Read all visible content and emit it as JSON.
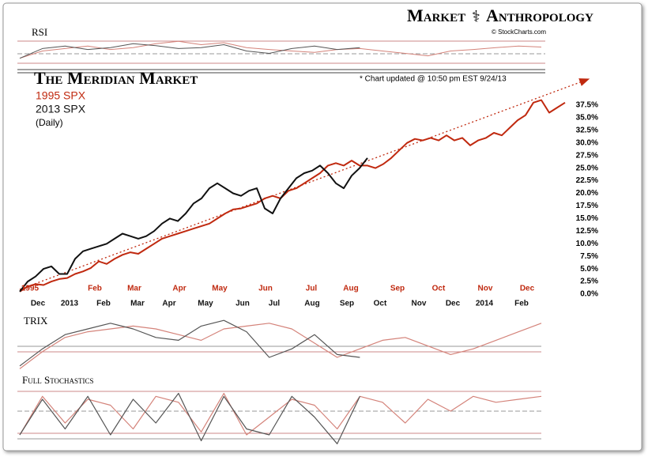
{
  "brand": {
    "left": "Market",
    "right": "Anthropology",
    "credit": "© StockCharts.com"
  },
  "chart_data": [
    {
      "type": "line",
      "title": "The Meridian Market",
      "subtitle": "(Daily)",
      "annotation": "* Chart updated @ 10:50 pm EST 9/24/13",
      "xlim": [
        0,
        69
      ],
      "ylim": [
        0,
        40
      ],
      "xticks": [
        {
          "value": 1.3,
          "label": "1995"
        },
        {
          "value": 9.5,
          "label": "Feb"
        },
        {
          "value": 14.5,
          "label": "Mar"
        },
        {
          "value": 20.2,
          "label": "Apr"
        },
        {
          "value": 25.3,
          "label": "May"
        },
        {
          "value": 31.1,
          "label": "Jun"
        },
        {
          "value": 36.9,
          "label": "Jul"
        },
        {
          "value": 41.9,
          "label": "Aug"
        },
        {
          "value": 47.8,
          "label": "Sep"
        },
        {
          "value": 53,
          "label": "Oct"
        },
        {
          "value": 58.9,
          "label": "Nov"
        },
        {
          "value": 64.2,
          "label": "Dec"
        }
      ],
      "x2ticks": [
        {
          "value": 2.3,
          "label": "Dec"
        },
        {
          "value": 6.3,
          "label": "2013"
        },
        {
          "value": 10.6,
          "label": "Feb"
        },
        {
          "value": 14.9,
          "label": "Mar"
        },
        {
          "value": 18.9,
          "label": "Apr"
        },
        {
          "value": 23.5,
          "label": "May"
        },
        {
          "value": 28.2,
          "label": "Jun"
        },
        {
          "value": 32.2,
          "label": "Jul"
        },
        {
          "value": 37,
          "label": "Aug"
        },
        {
          "value": 41.4,
          "label": "Sep"
        },
        {
          "value": 45.6,
          "label": "Oct"
        },
        {
          "value": 50.5,
          "label": "Nov"
        },
        {
          "value": 54.8,
          "label": "Dec"
        },
        {
          "value": 58.8,
          "label": "2014"
        },
        {
          "value": 63.5,
          "label": "Feb"
        }
      ],
      "yticks": [
        {
          "value": 0,
          "label": "0.0%"
        },
        {
          "value": 2.5,
          "label": "2.5%"
        },
        {
          "value": 5,
          "label": "5.0%"
        },
        {
          "value": 7.5,
          "label": "7.5%"
        },
        {
          "value": 10,
          "label": "10.0%"
        },
        {
          "value": 12.5,
          "label": "12.5%"
        },
        {
          "value": 15,
          "label": "15.0%"
        },
        {
          "value": 17.5,
          "label": "17.5%"
        },
        {
          "value": 20,
          "label": "20.0%"
        },
        {
          "value": 22.5,
          "label": "22.5%"
        },
        {
          "value": 25,
          "label": "25.0%"
        },
        {
          "value": 27.5,
          "label": "27.5%"
        },
        {
          "value": 30,
          "label": "30.0%"
        },
        {
          "value": 32.5,
          "label": "32.5%"
        },
        {
          "value": 35,
          "label": "35.0%"
        },
        {
          "value": 37.5,
          "label": "37.5%"
        }
      ],
      "series": [
        {
          "name": "1995 SPX",
          "color": "#c0290f",
          "values": [
            0.5,
            1.5,
            2,
            1.8,
            2.5,
            3,
            3.2,
            4,
            4.5,
            5.2,
            6.5,
            6,
            7,
            7.8,
            8.3,
            8,
            9,
            10,
            11,
            11.5,
            12,
            12.5,
            13,
            13.5,
            14,
            15,
            16,
            16.8,
            17,
            17.5,
            18,
            19,
            19.5,
            19,
            20.5,
            21,
            22,
            23,
            24,
            25.5,
            26,
            25.5,
            26.5,
            25.5,
            25.5,
            25,
            25.8,
            27,
            28.5,
            30,
            30.8,
            30.5,
            31,
            30.5,
            31.5,
            30.5,
            31,
            29.5,
            30.5,
            31,
            32,
            31.5,
            33,
            34.5,
            35.5,
            38,
            38.5,
            36,
            37,
            38
          ]
        },
        {
          "name": "2013 SPX",
          "color": "#111111",
          "values": [
            0.5,
            2.5,
            3.5,
            5,
            5.5,
            4,
            4,
            7,
            8.5,
            9,
            9.5,
            10,
            11,
            12,
            11.5,
            11,
            11.5,
            12.5,
            14,
            15,
            14.5,
            16,
            18,
            19,
            21,
            22,
            21,
            20,
            19.5,
            20.5,
            21,
            17,
            16,
            19,
            21,
            23,
            24,
            24.5,
            25.5,
            24,
            22,
            21,
            23.5,
            25,
            27,
            null,
            null,
            null,
            null,
            null,
            null,
            null,
            null,
            null,
            null,
            null,
            null,
            null,
            null,
            null,
            null,
            null,
            null,
            null,
            null,
            null,
            null,
            null,
            null,
            null
          ]
        }
      ]
    },
    {
      "type": "line",
      "title": "RSI",
      "xlim": [
        0,
        69
      ],
      "ylim": [
        20,
        85
      ],
      "x": [
        0,
        3,
        6,
        9,
        12,
        15,
        18,
        21,
        24,
        27,
        30,
        33,
        36,
        39,
        42,
        45,
        48,
        51,
        54,
        57,
        60,
        63,
        66,
        69
      ],
      "series": [
        {
          "color": "#d4837a",
          "values": [
            40,
            55,
            60,
            65,
            58,
            62,
            70,
            75,
            68,
            72,
            62,
            58,
            55,
            52,
            58,
            60,
            55,
            50,
            45,
            55,
            58,
            62,
            65,
            63
          ]
        },
        {
          "color": "#555555",
          "values": [
            40,
            60,
            65,
            58,
            62,
            70,
            66,
            60,
            62,
            68,
            55,
            50,
            60,
            65,
            58,
            62,
            null,
            null,
            null,
            null,
            null,
            null,
            null,
            null
          ]
        }
      ]
    },
    {
      "type": "line",
      "title": "TRIX",
      "xlim": [
        0,
        69
      ],
      "ylim": [
        -1,
        1
      ],
      "x": [
        0,
        3,
        6,
        9,
        12,
        15,
        18,
        21,
        24,
        27,
        30,
        33,
        36,
        39,
        42,
        45,
        48,
        51,
        54,
        57,
        60,
        63,
        66,
        69
      ],
      "series": [
        {
          "color": "#d4837a",
          "values": [
            -0.9,
            -0.3,
            0.2,
            0.4,
            0.5,
            0.6,
            0.5,
            0.3,
            0.1,
            0.5,
            0.6,
            0.7,
            0.5,
            0.0,
            -0.5,
            -0.2,
            0.1,
            0.2,
            -0.1,
            -0.4,
            -0.2,
            0.1,
            0.4,
            0.7
          ]
        },
        {
          "color": "#555555",
          "values": [
            -0.8,
            -0.2,
            0.3,
            0.5,
            0.7,
            0.5,
            0.2,
            0.1,
            0.6,
            0.8,
            0.4,
            -0.5,
            -0.2,
            0.3,
            -0.4,
            -0.5,
            null,
            null,
            null,
            null,
            null,
            null,
            null,
            null
          ]
        }
      ]
    },
    {
      "type": "line",
      "title": "Full Stochastics",
      "xlim": [
        0,
        69
      ],
      "ylim": [
        0,
        100
      ],
      "x": [
        0,
        3,
        6,
        9,
        12,
        15,
        18,
        21,
        24,
        27,
        30,
        33,
        36,
        39,
        42,
        45,
        48,
        51,
        54,
        57,
        60,
        63,
        66,
        69
      ],
      "series": [
        {
          "color": "#d4837a",
          "values": [
            20,
            85,
            40,
            80,
            70,
            30,
            85,
            75,
            25,
            90,
            20,
            50,
            80,
            70,
            30,
            85,
            75,
            40,
            80,
            60,
            85,
            75,
            80,
            85
          ]
        },
        {
          "color": "#555555",
          "values": [
            20,
            80,
            30,
            85,
            20,
            80,
            40,
            90,
            10,
            85,
            30,
            20,
            85,
            50,
            5,
            85,
            null,
            null,
            null,
            null,
            null,
            null,
            null,
            null
          ]
        }
      ]
    }
  ]
}
